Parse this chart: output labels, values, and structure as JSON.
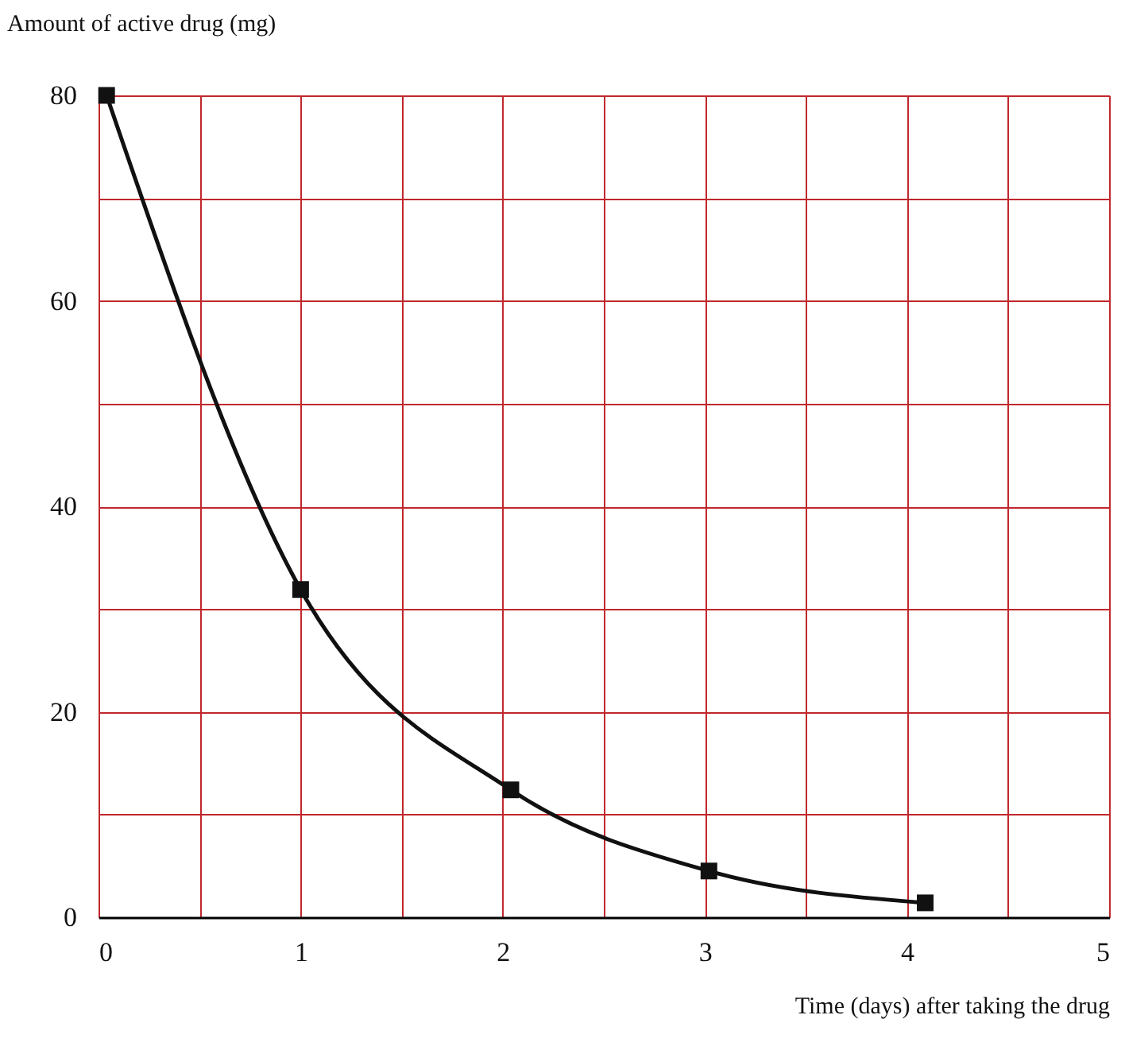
{
  "chart_data": {
    "type": "line",
    "xlabel": "Time (days) after taking the drug",
    "ylabel": "Amount of active drug (mg)",
    "x": [
      0.04,
      1.0,
      2.04,
      3.02,
      4.09
    ],
    "series": [
      {
        "color": "#111111",
        "values": [
          80,
          31.9,
          12.4,
          4.5,
          1.4
        ]
      }
    ],
    "xlim": [
      0,
      5
    ],
    "ylim": [
      0,
      80
    ],
    "xticks": [
      0,
      {
        "value": 0.5,
        "label": null
      },
      1,
      {
        "value": 1.5,
        "label": null
      },
      2,
      {
        "value": 2.5,
        "label": null
      },
      3,
      {
        "value": 3.5,
        "label": null
      },
      4,
      {
        "value": 4.5,
        "label": null
      },
      5
    ],
    "yticks": [
      0,
      {
        "value": 10,
        "label": null
      },
      20,
      {
        "value": 30,
        "label": null
      },
      40,
      {
        "value": 50,
        "label": null
      },
      60,
      {
        "value": 70,
        "label": null
      },
      80
    ],
    "grid": true,
    "marker": "square",
    "line_style": "solid"
  }
}
